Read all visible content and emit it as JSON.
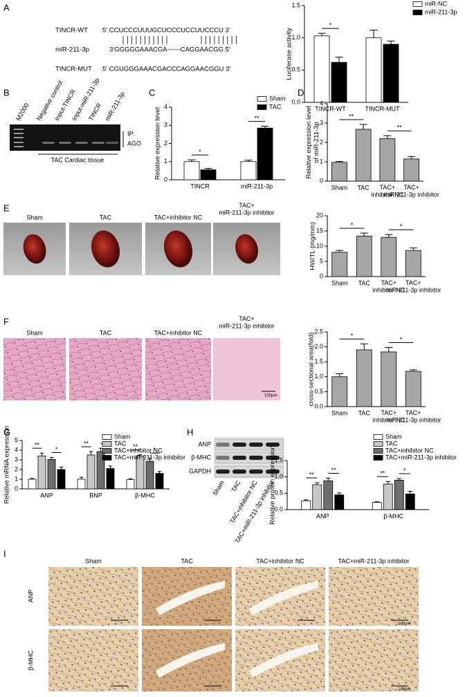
{
  "labels": {
    "panels": [
      "A",
      "B",
      "C",
      "D",
      "E",
      "F",
      "G",
      "H",
      "I"
    ],
    "sequences": {
      "wt_name": "TINCR-WT",
      "wt_seq": "5' CCUCCCUUUGCUCCCUCCUUCCCU 3'",
      "mir_name": "miR-211-3p",
      "mir_seq": "3'GGGGGAAACGA------CAGGAACGG 5'",
      "mut_name": "TINCR-MUT",
      "mut_seq": "5' CGUGGGAAACGACCCAGGAACGGU 3'"
    },
    "gel": {
      "lanes": [
        "M2000",
        "Negative control",
        "Input-TINCR",
        "Input-miR-211-3p",
        "TINCR",
        "miR-211-3p"
      ],
      "ip": "IP:",
      "ago": "AGO",
      "tissue": "TAC Cardiac tissue"
    },
    "heart_photos": [
      "Sham",
      "TAC",
      "TAC+inhibitor NC",
      "TAC+\nmiR-211-3p inhibitor"
    ],
    "histology": {
      "columns": [
        "Sham",
        "TAC",
        "TAC+inhibitor NC",
        "TAC+\nmiR-211-3p inhibitor"
      ],
      "scale": "100μm"
    },
    "blot": {
      "rows": [
        "ANP",
        "β-MHC",
        "GAPDH"
      ],
      "lanes": [
        "Sham",
        "TAC",
        "TAC+inhibitor NC",
        "TAC+miR-211-3p inhibitor"
      ]
    },
    "ihc": {
      "columns": [
        "Sham",
        "TAC",
        "TAC+inhibitor NC",
        "TAC+miR-211-3p inhibitor"
      ],
      "rows": [
        "ANP",
        "β-MHC"
      ],
      "scale": "100μm"
    }
  },
  "chart_data": [
    {
      "type": "bar",
      "ylabel": "Luciferase activity",
      "categories": [
        "TINCR-WT",
        "TINCR-MUT"
      ],
      "series": [
        {
          "name": "miR-NC",
          "color": "#ffffff",
          "values": [
            1.03,
            1.0
          ],
          "errors": [
            0.04,
            0.12
          ]
        },
        {
          "name": "miR-211-3p",
          "color": "#000000",
          "values": [
            0.62,
            0.9
          ],
          "errors": [
            0.08,
            0.05
          ]
        }
      ],
      "ylim": [
        0,
        1.5
      ],
      "yticks": [
        {
          "value": 0,
          "label": "0.0"
        },
        0.5,
        {
          "value": 1,
          "label": "1.0"
        },
        1.5
      ],
      "annotations": [
        "*"
      ]
    },
    {
      "type": "bar",
      "ylabel": "Relative expression level",
      "categories": [
        "TINCR",
        "miR-211-3p"
      ],
      "series": [
        {
          "name": "Sham",
          "color": "#ffffff",
          "values": [
            1.0,
            1.0
          ],
          "errors": [
            0.1,
            0.08
          ]
        },
        {
          "name": "TAC",
          "color": "#000000",
          "values": [
            0.55,
            2.85
          ],
          "errors": [
            0.08,
            0.1
          ]
        }
      ],
      "ylim": [
        0,
        4
      ],
      "yticks": [
        0,
        1,
        2,
        3,
        4
      ],
      "annotations": [
        "*",
        "**"
      ]
    },
    {
      "type": "bar",
      "ylabel": "Relative expression level\nof miR-211-3p",
      "categories": [
        "Sham",
        "TAC",
        "TAC+\ninhibitor NC",
        "TAC+\nmiR-211-3p inhibitor"
      ],
      "values": [
        0.97,
        2.68,
        2.2,
        1.15
      ],
      "errors": [
        0.05,
        0.25,
        0.15,
        0.12
      ],
      "color": "#a6a6a6",
      "ylim": [
        0,
        4
      ],
      "yticks": [
        0,
        1,
        2,
        3,
        4
      ],
      "annotations": [
        "**",
        "**"
      ]
    },
    {
      "type": "bar",
      "ylabel": "HW/TL (mg/mm)",
      "categories": [
        "Sham",
        "TAC",
        "TAC+\ninhibitor NC",
        "TAC+\nmiR-211-3p inhibitor"
      ],
      "values": [
        8,
        13.3,
        12.9,
        8.6
      ],
      "errors": [
        0.6,
        1.0,
        0.9,
        0.8
      ],
      "color": "#a6a6a6",
      "ylim": [
        0,
        20
      ],
      "yticks": [
        0,
        5,
        10,
        15,
        20
      ],
      "annotations": [
        "*",
        "*"
      ]
    },
    {
      "type": "bar",
      "ylabel": "cross-sectional area(fold)",
      "categories": [
        "Sham",
        "TAC",
        "TAC+\ninhibitor NC",
        "TAC+\nmiR-211-3p inhibitor"
      ],
      "values": [
        1.0,
        1.9,
        1.83,
        1.18
      ],
      "errors": [
        0.1,
        0.2,
        0.15,
        0.05
      ],
      "color": "#a6a6a6",
      "ylim": [
        0,
        2.5
      ],
      "yticks": [
        {
          "value": 0,
          "label": "0.0"
        },
        0.5,
        {
          "value": 1,
          "label": "1.0"
        },
        1.5,
        {
          "value": 2,
          "label": "2.0"
        },
        2.5
      ],
      "annotations": [
        "*",
        "*"
      ]
    },
    {
      "type": "bar",
      "ylabel": "Relative mRNA expression",
      "categories": [
        "ANP",
        "BNP",
        "β-MHC"
      ],
      "series": [
        {
          "name": "Sham",
          "color": "#ffffff",
          "values": [
            1.0,
            1.0,
            0.95
          ],
          "errors": [
            0.08,
            0.2,
            0.1
          ]
        },
        {
          "name": "TAC",
          "color": "#c8c8c8",
          "values": [
            3.4,
            3.5,
            3.4
          ],
          "errors": [
            0.3,
            0.35,
            0.12
          ]
        },
        {
          "name": "TAC+inhibitor NC",
          "color": "#6e6e6e",
          "values": [
            3.05,
            3.85,
            2.85
          ],
          "errors": [
            0.2,
            0.35,
            0.35
          ]
        },
        {
          "name": "TAC+miR-211-3p inhibitor",
          "color": "#000000",
          "values": [
            2.0,
            2.1,
            1.6
          ],
          "errors": [
            0.25,
            0.25,
            0.2
          ]
        }
      ],
      "ylim": [
        0,
        5
      ],
      "yticks": [
        0,
        1,
        2,
        3,
        4,
        5
      ],
      "annotations": [
        "**",
        "*",
        "**",
        "*",
        "**",
        "*"
      ]
    },
    {
      "type": "bar",
      "ylabel": "Relative protein expression",
      "categories": [
        "ANP",
        "β-MHC"
      ],
      "series": [
        {
          "name": "Sham",
          "color": "#ffffff",
          "values": [
            0.27,
            0.22
          ],
          "errors": [
            0.03,
            0.02
          ]
        },
        {
          "name": "TAC",
          "color": "#c8c8c8",
          "values": [
            0.76,
            0.78
          ],
          "errors": [
            0.06,
            0.08
          ]
        },
        {
          "name": "TAC+inhibitor NC",
          "color": "#6e6e6e",
          "values": [
            0.88,
            0.9
          ],
          "errors": [
            0.08,
            0.05
          ]
        },
        {
          "name": "TAC+miR-211-3p inhibitor",
          "color": "#000000",
          "values": [
            0.45,
            0.48
          ],
          "errors": [
            0.06,
            0.08
          ]
        }
      ],
      "ylim": [
        0,
        1.5
      ],
      "yticks": [
        {
          "value": 0,
          "label": "0.0"
        },
        0.5,
        {
          "value": 1,
          "label": "1.0"
        },
        1.5
      ],
      "annotations": [
        "**",
        "**",
        "**",
        "*"
      ]
    }
  ]
}
